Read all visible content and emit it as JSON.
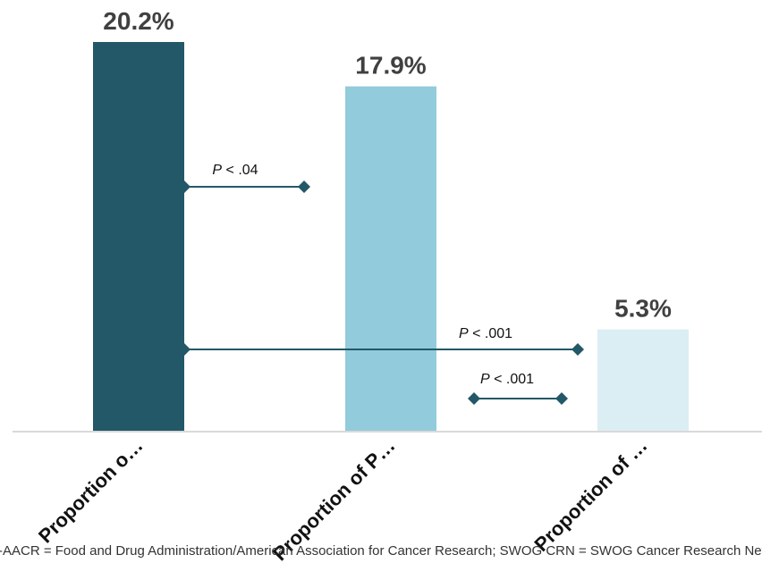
{
  "chart_data": {
    "type": "bar",
    "categories": [
      "Proportion o…",
      "Proportion of P…",
      "Proportion of …"
    ],
    "values": [
      20.2,
      17.9,
      5.3
    ],
    "value_labels": [
      "20.2%",
      "17.9%",
      "5.3%"
    ],
    "colors": [
      "#225868",
      "#92cbdc",
      "#dbeef4"
    ],
    "ylim": [
      0,
      20.2
    ],
    "grid": false,
    "legend": "none",
    "comparisons": [
      {
        "from": 0,
        "to": 1,
        "label_prefix": "P",
        "label_rest": " < .04"
      },
      {
        "from": 0,
        "to": 2,
        "label_prefix": "P",
        "label_rest": " < .001"
      },
      {
        "from": 1,
        "to": 2,
        "label_prefix": "P",
        "label_rest": " < .001"
      }
    ],
    "footnote": "FDA-AACR = Food and Drug Administration/American Association for Cancer Research; SWOG CRN = SWOG Cancer Research Network."
  },
  "colors": {
    "connector": "#225868",
    "axis": "#d9d9d9"
  }
}
